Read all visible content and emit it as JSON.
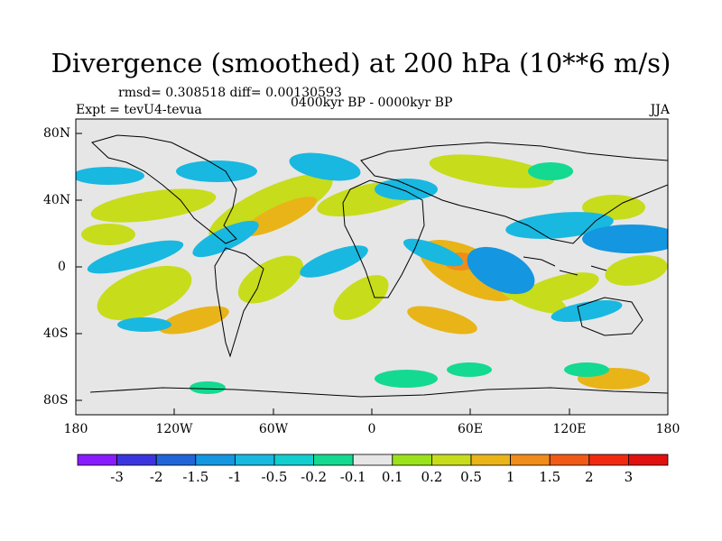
{
  "header": {
    "title": "Divergence (smoothed) at 200 hPa (10**6 m/s)",
    "stats": "rmsd= 0.308518  diff= 0.00130593",
    "experiment": "Expt = tevU4-tevua",
    "period": "0400kyr BP - 0000kyr BP",
    "season": "JJA"
  },
  "axes": {
    "y_labels": [
      "80N",
      "40N",
      "0",
      "40S",
      "80S"
    ],
    "x_labels": [
      "180",
      "120W",
      "60W",
      "0",
      "60E",
      "120E",
      "180"
    ],
    "lon_range": [
      -180,
      180
    ],
    "lat_range": [
      -90,
      90
    ]
  },
  "colorbar": {
    "labels": [
      "-3",
      "-2",
      "-1.5",
      "-1",
      "-0.5",
      "-0.2",
      "-0.1",
      "0.1",
      "0.2",
      "0.5",
      "1",
      "1.5",
      "2",
      "3"
    ],
    "colors": [
      "#8a1aff",
      "#3b35e0",
      "#2066d8",
      "#1596e0",
      "#18b8e0",
      "#12cfcf",
      "#14d990",
      "#e6e6e6",
      "#9be21c",
      "#c7dc1b",
      "#e8b418",
      "#ef8c1a",
      "#f05a16",
      "#f02a10",
      "#e01010"
    ]
  },
  "colors": {
    "neutral": "#e6e6e6",
    "coast": "#000000"
  }
}
